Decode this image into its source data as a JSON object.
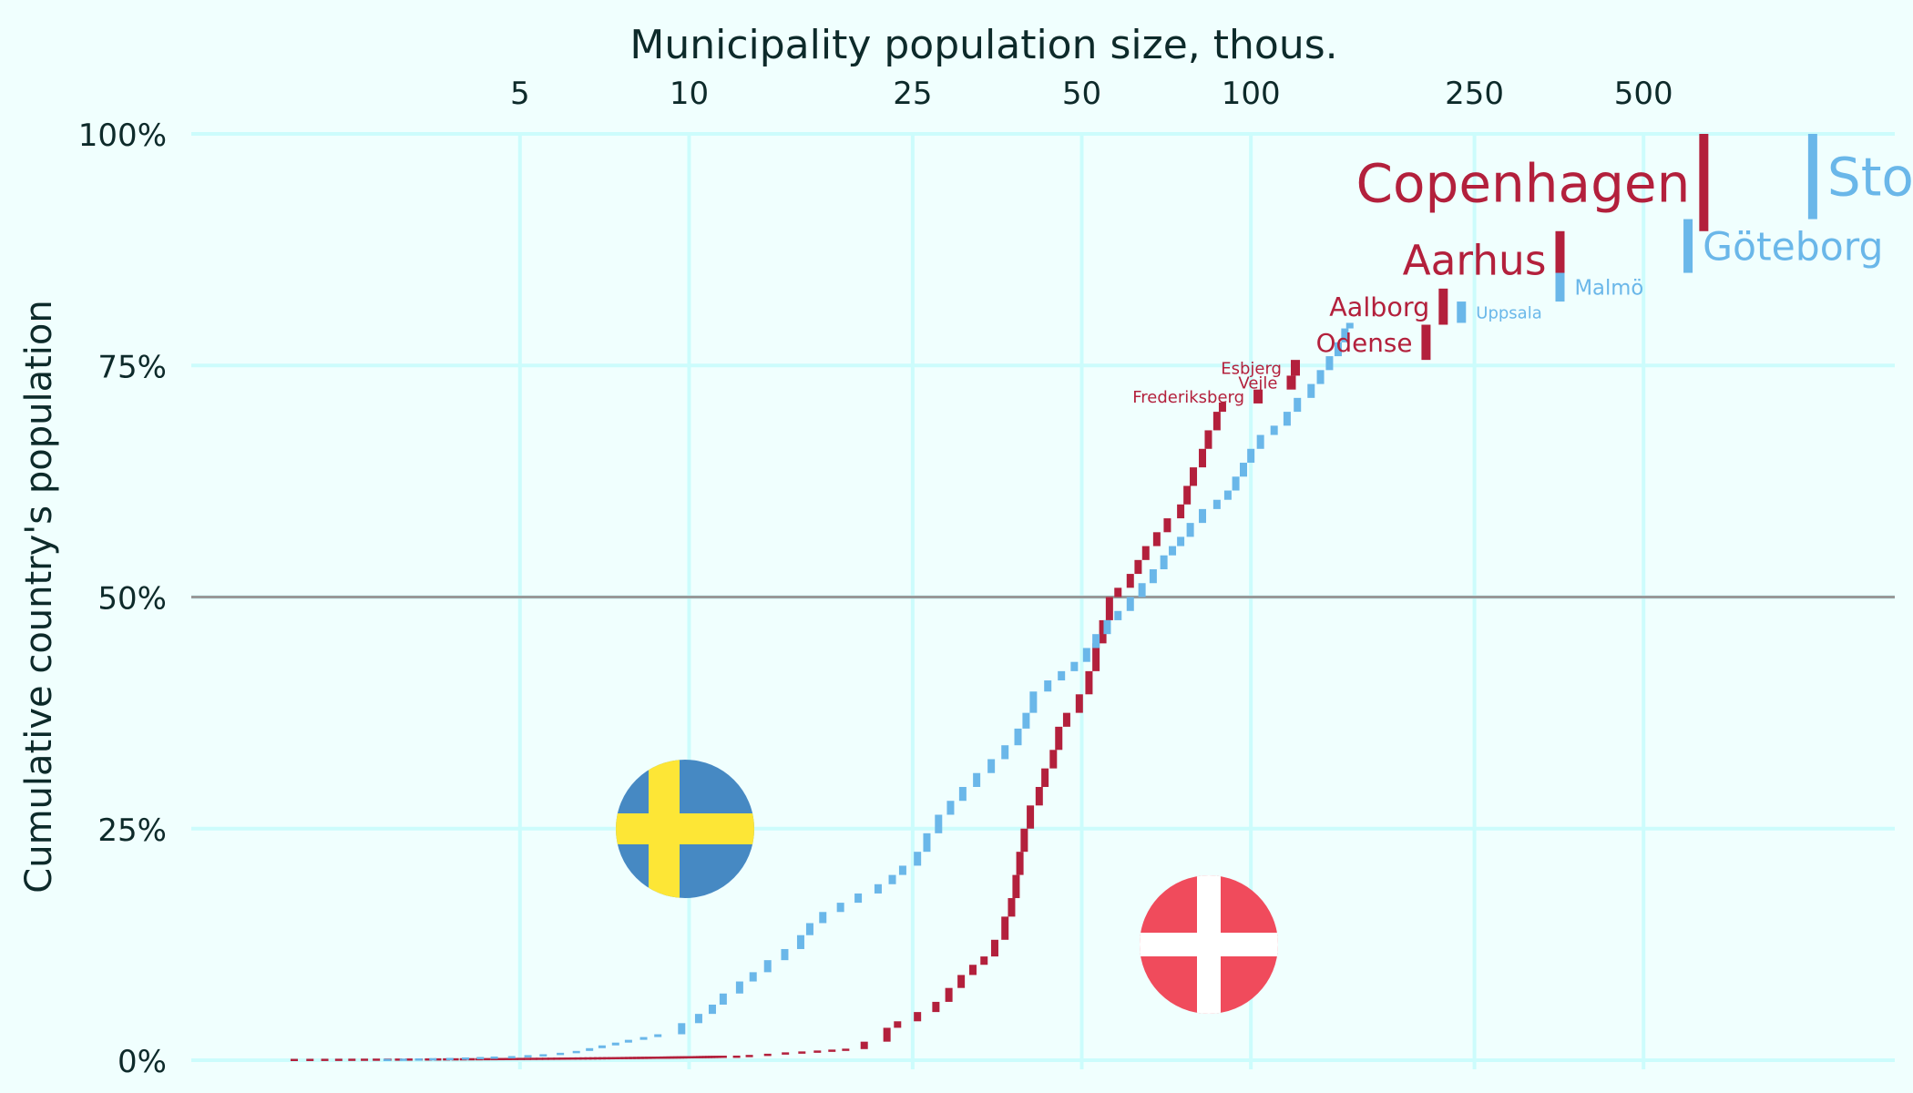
{
  "chart_data": {
    "type": "line",
    "subtype": "cumulative-step",
    "xlabel": "Municipality population size, thous.",
    "ylabel": "Cumulative country's population",
    "x_scale": "log",
    "xlim": [
      1.3,
      1400
    ],
    "ylim": [
      0,
      100
    ],
    "x_ticks": [
      5,
      10,
      25,
      50,
      100,
      250,
      500
    ],
    "x_tick_labels": [
      "5",
      "10",
      "25",
      "50",
      "100",
      "250",
      "500"
    ],
    "y_ticks": [
      0,
      25,
      50,
      75,
      100
    ],
    "y_tick_labels": [
      "0%",
      "25%",
      "50%",
      "75%",
      "100%"
    ],
    "reference_line_y": 50,
    "grid": true,
    "colors": {
      "background": "#f0fffe",
      "grid": "#ccfcfc",
      "reference_line": "#999999",
      "text": "#0d2a2a",
      "denmark": "#b3203c",
      "sweden": "#6ab7e9",
      "denmark_flag_red": "#f04b5c",
      "sweden_flag_blue": "#4689c3",
      "sweden_flag_yellow": "#fde636"
    },
    "series": [
      {
        "key": "denmark",
        "flag": "denmark-flag",
        "points": [
          [
            1.85,
            0
          ],
          [
            11.5,
            0.35
          ],
          [
            12.8,
            0.5
          ],
          [
            13.8,
            0.7
          ],
          [
            19.0,
            1.2
          ],
          [
            20.5,
            2.0
          ],
          [
            22.5,
            3.5
          ],
          [
            23.5,
            4.2
          ],
          [
            25.5,
            5.2
          ],
          [
            27.5,
            6.3
          ],
          [
            29.0,
            7.8
          ],
          [
            30.5,
            9.2
          ],
          [
            32.0,
            10.3
          ],
          [
            33.5,
            11.2
          ],
          [
            35.0,
            13.0
          ],
          [
            36.5,
            15.5
          ],
          [
            37.5,
            17.5
          ],
          [
            38.2,
            20.0
          ],
          [
            38.8,
            22.5
          ],
          [
            39.5,
            25.0
          ],
          [
            40.5,
            27.5
          ],
          [
            42.0,
            29.5
          ],
          [
            43.0,
            31.5
          ],
          [
            44.5,
            33.5
          ],
          [
            45.5,
            36.0
          ],
          [
            47.0,
            37.5
          ],
          [
            49.5,
            39.5
          ],
          [
            51.5,
            42.0
          ],
          [
            53.0,
            45.0
          ],
          [
            54.5,
            47.5
          ],
          [
            56.0,
            50.0
          ],
          [
            58.0,
            51.0
          ],
          [
            61.0,
            52.5
          ],
          [
            63.0,
            54.0
          ],
          [
            65.0,
            55.5
          ],
          [
            68.0,
            57.0
          ],
          [
            71.0,
            58.5
          ],
          [
            75.0,
            60.0
          ],
          [
            77.0,
            62.0
          ],
          [
            79.0,
            64.0
          ],
          [
            82.0,
            66.0
          ],
          [
            84.0,
            68.0
          ],
          [
            87.0,
            70.0
          ],
          [
            89.0,
            71.0
          ]
        ],
        "cities": [
          {
            "name": "Frederiksberg",
            "x": 103,
            "y0": 70.9,
            "y1": 72.4
          },
          {
            "name": "Vejle",
            "x": 118,
            "y0": 72.4,
            "y1": 73.9
          },
          {
            "name": "Esbjerg",
            "x": 120,
            "y0": 73.9,
            "y1": 75.6
          },
          {
            "name": "Odense",
            "x": 205,
            "y0": 75.6,
            "y1": 79.4
          },
          {
            "name": "Aalborg",
            "x": 220,
            "y0": 79.4,
            "y1": 83.3
          },
          {
            "name": "Aarhus",
            "x": 355,
            "y0": 83.3,
            "y1": 89.5
          },
          {
            "name": "Copenhagen",
            "x": 640,
            "y0": 89.5,
            "y1": 100
          }
        ]
      },
      {
        "key": "sweden",
        "flag": "sweden-flag",
        "points": [
          [
            2.7,
            0
          ],
          [
            3.5,
            0.1
          ],
          [
            4.5,
            0.3
          ],
          [
            5.5,
            0.6
          ],
          [
            6.3,
            1.0
          ],
          [
            7.0,
            1.6
          ],
          [
            7.8,
            2.2
          ],
          [
            8.8,
            2.8
          ],
          [
            9.7,
            4.0
          ],
          [
            10.4,
            5.0
          ],
          [
            11.0,
            6.0
          ],
          [
            11.5,
            7.2
          ],
          [
            12.3,
            8.5
          ],
          [
            13.0,
            9.5
          ],
          [
            13.8,
            10.8
          ],
          [
            14.8,
            12.0
          ],
          [
            15.8,
            13.5
          ],
          [
            16.4,
            14.8
          ],
          [
            17.3,
            16.0
          ],
          [
            18.6,
            17.0
          ],
          [
            20.0,
            18.0
          ],
          [
            21.7,
            19.0
          ],
          [
            23.0,
            20.0
          ],
          [
            24.0,
            21.0
          ],
          [
            25.5,
            22.5
          ],
          [
            26.5,
            24.5
          ],
          [
            27.8,
            26.5
          ],
          [
            29.2,
            28.0
          ],
          [
            30.7,
            29.5
          ],
          [
            32.5,
            31.0
          ],
          [
            34.5,
            32.5
          ],
          [
            36.5,
            34.0
          ],
          [
            38.5,
            35.8
          ],
          [
            39.8,
            37.5
          ],
          [
            41.0,
            39.8
          ],
          [
            43.5,
            41.0
          ],
          [
            46.0,
            42.0
          ],
          [
            48.5,
            43.0
          ],
          [
            51.0,
            44.5
          ],
          [
            53.0,
            46.0
          ],
          [
            55.5,
            47.5
          ],
          [
            58.0,
            48.5
          ],
          [
            61.0,
            50.0
          ],
          [
            64.0,
            51.5
          ],
          [
            67.0,
            53.0
          ],
          [
            70.0,
            54.5
          ],
          [
            72.5,
            55.5
          ],
          [
            75.0,
            56.5
          ],
          [
            78.0,
            58.0
          ],
          [
            82.0,
            59.5
          ],
          [
            87.0,
            60.5
          ],
          [
            91.0,
            61.5
          ],
          [
            94.0,
            63.0
          ],
          [
            97.0,
            64.5
          ],
          [
            100.0,
            66.0
          ],
          [
            104.0,
            67.5
          ],
          [
            110.0,
            68.5
          ],
          [
            116.0,
            70.0
          ],
          [
            121.0,
            71.5
          ],
          [
            128.0,
            73.0
          ],
          [
            133.0,
            74.5
          ],
          [
            138.0,
            76.0
          ],
          [
            143.0,
            77.5
          ],
          [
            147.0,
            79.0
          ],
          [
            150.0,
            79.6
          ]
        ],
        "cities": [
          {
            "name": "Uppsala",
            "x": 237,
            "y0": 79.6,
            "y1": 81.9
          },
          {
            "name": "Malmö",
            "x": 355,
            "y0": 81.9,
            "y1": 85.0
          },
          {
            "name": "Göteborg",
            "x": 600,
            "y0": 85.0,
            "y1": 90.8
          },
          {
            "name": "Sto",
            "x": 1000,
            "y0": 90.8,
            "y1": 100
          }
        ]
      }
    ]
  }
}
